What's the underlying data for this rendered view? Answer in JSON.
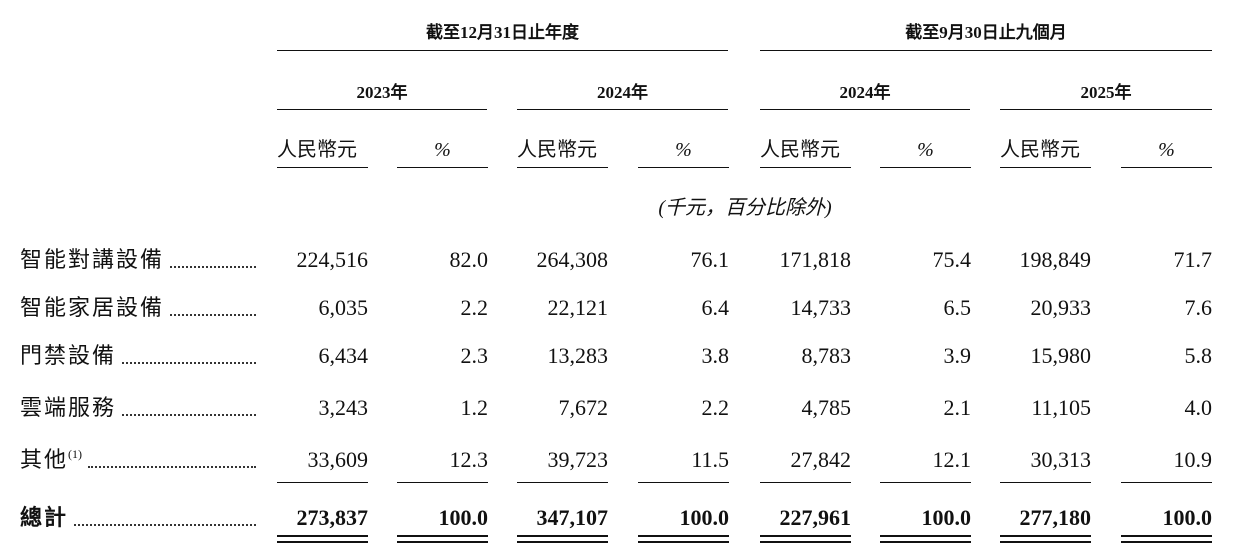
{
  "table": {
    "groups": [
      "截至12月31日止年度",
      "截至9月30日止九個月"
    ],
    "years": [
      "2023年",
      "2024年",
      "2024年",
      "2025年"
    ],
    "subheaders": [
      "人民幣元",
      "%",
      "人民幣元",
      "%",
      "人民幣元",
      "%",
      "人民幣元",
      "%"
    ],
    "unit_note": "(千元，百分比除外)",
    "rows": [
      {
        "label": "智能對講設備",
        "cells": [
          "224,516",
          "82.0",
          "264,308",
          "76.1",
          "171,818",
          "75.4",
          "198,849",
          "71.7"
        ]
      },
      {
        "label": "智能家居設備",
        "cells": [
          "6,035",
          "2.2",
          "22,121",
          "6.4",
          "14,733",
          "6.5",
          "20,933",
          "7.6"
        ]
      },
      {
        "label": "門禁設備",
        "cells": [
          "6,434",
          "2.3",
          "13,283",
          "3.8",
          "8,783",
          "3.9",
          "15,980",
          "5.8"
        ]
      },
      {
        "label": "雲端服務",
        "cells": [
          "3,243",
          "1.2",
          "7,672",
          "2.2",
          "4,785",
          "2.1",
          "11,105",
          "4.0"
        ]
      },
      {
        "label": "其他",
        "note": "(1)",
        "cells": [
          "33,609",
          "12.3",
          "39,723",
          "11.5",
          "27,842",
          "12.1",
          "30,313",
          "10.9"
        ]
      },
      {
        "label": "總計",
        "cells": [
          "273,837",
          "100.0",
          "347,107",
          "100.0",
          "227,961",
          "100.0",
          "277,180",
          "100.0"
        ]
      }
    ]
  }
}
